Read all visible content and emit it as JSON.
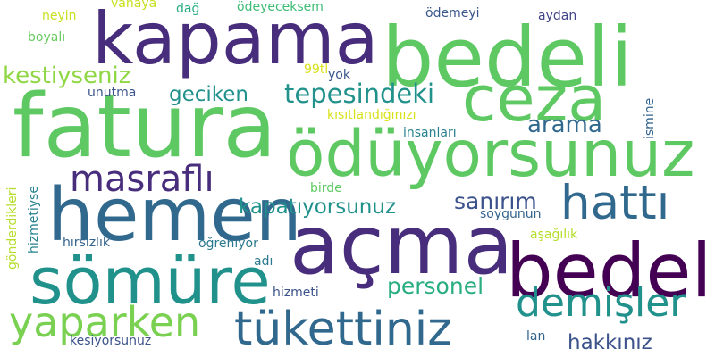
{
  "palette": {
    "c1": "#440154",
    "c2": "#472d7b",
    "c3": "#3b528b",
    "c4": "#2c728e",
    "c5": "#21918c",
    "c6": "#28ae80",
    "c7": "#5ec962",
    "c8": "#addc30",
    "c9": "#fde725"
  },
  "words": [
    {
      "id": "bedeli",
      "text": "bedeli",
      "color": "#5ec962"
    },
    {
      "id": "kapama",
      "text": "kapama",
      "color": "#472d7b"
    },
    {
      "id": "fatura",
      "text": "fatura",
      "color": "#5ec962"
    },
    {
      "id": "ceza",
      "text": "ceza",
      "color": "#5ec962"
    },
    {
      "id": "oduyorsunuz",
      "text": "ödüyorsunuz",
      "color": "#5ec962"
    },
    {
      "id": "hemen",
      "text": "hemen",
      "color": "#31688e"
    },
    {
      "id": "acma",
      "text": "açma",
      "color": "#472d7b"
    },
    {
      "id": "bedel",
      "text": "bedel",
      "color": "#440154"
    },
    {
      "id": "somure",
      "text": "sömüre",
      "color": "#21918c"
    },
    {
      "id": "hatti",
      "text": "hattı",
      "color": "#31688e"
    },
    {
      "id": "yaparken",
      "text": "yaparken",
      "color": "#7ad151"
    },
    {
      "id": "tukettiniz",
      "text": "tükettiniz",
      "color": "#31688e"
    },
    {
      "id": "demisler",
      "text": "demişler",
      "color": "#21918c"
    },
    {
      "id": "masrafli",
      "text": "masraflı",
      "color": "#472d7b"
    },
    {
      "id": "tepesindeki",
      "text": "tepesindeki",
      "color": "#21918c"
    },
    {
      "id": "kestiyseniz",
      "text": "kestiyseniz",
      "color": "#8fd744"
    },
    {
      "id": "geciken",
      "text": "geciken",
      "color": "#21918c"
    },
    {
      "id": "arama",
      "text": "arama",
      "color": "#31688e"
    },
    {
      "id": "kapatiyorsunuz",
      "text": "kapatıyorsunuz",
      "color": "#21918c"
    },
    {
      "id": "sanirim",
      "text": "sanırım",
      "color": "#3b528b"
    },
    {
      "id": "personel",
      "text": "personel",
      "color": "#28ae80"
    },
    {
      "id": "hakkiniz",
      "text": "hakkınız",
      "color": "#3b528b"
    },
    {
      "id": "neyin",
      "text": "neyin",
      "color": "#c8e020"
    },
    {
      "id": "vanaya",
      "text": "vanaya",
      "color": "#c8e020"
    },
    {
      "id": "dag",
      "text": "dağ",
      "color": "#28ae80"
    },
    {
      "id": "odeyeceksem",
      "text": "ödeyeceksem",
      "color": "#3dbc74"
    },
    {
      "id": "odemeyi",
      "text": "ödemeyi",
      "color": "#39568c"
    },
    {
      "id": "aydan",
      "text": "aydan",
      "color": "#414487"
    },
    {
      "id": "boyali",
      "text": "boyalı",
      "color": "#65cb5e"
    },
    {
      "id": "tl99",
      "text": "99tl",
      "color": "#d8e219"
    },
    {
      "id": "yok",
      "text": "yok",
      "color": "#39568c"
    },
    {
      "id": "unutma",
      "text": "unutma",
      "color": "#3b528b"
    },
    {
      "id": "kisitlandiginizi",
      "text": "kısıtlandığınızı",
      "color": "#d8e219"
    },
    {
      "id": "insanlari",
      "text": "insanları",
      "color": "#26828e"
    },
    {
      "id": "ismine",
      "text": "ismine",
      "color": "#33638d"
    },
    {
      "id": "gonderdikleri",
      "text": "gönderdikleri",
      "color": "#b5de2b"
    },
    {
      "id": "hizmetiyse",
      "text": "hizmetiyse",
      "color": "#26828e"
    },
    {
      "id": "birde",
      "text": "birde",
      "color": "#5ec962"
    },
    {
      "id": "soygunun",
      "text": "soygunun",
      "color": "#33638d"
    },
    {
      "id": "asagilik",
      "text": "aşağılık",
      "color": "#b5de2b"
    },
    {
      "id": "hirsizlik",
      "text": "hırsızlık",
      "color": "#33638d"
    },
    {
      "id": "ogreniyor",
      "text": "öğreniyor",
      "color": "#2a788e"
    },
    {
      "id": "adi",
      "text": "adı",
      "color": "#2a788e"
    },
    {
      "id": "hizmeti",
      "text": "hizmeti",
      "color": "#3b528b"
    },
    {
      "id": "kesiyorsunuz",
      "text": "kesiyorsunuz",
      "color": "#3b528b"
    },
    {
      "id": "lan",
      "text": "lan",
      "color": "#33638d"
    }
  ]
}
